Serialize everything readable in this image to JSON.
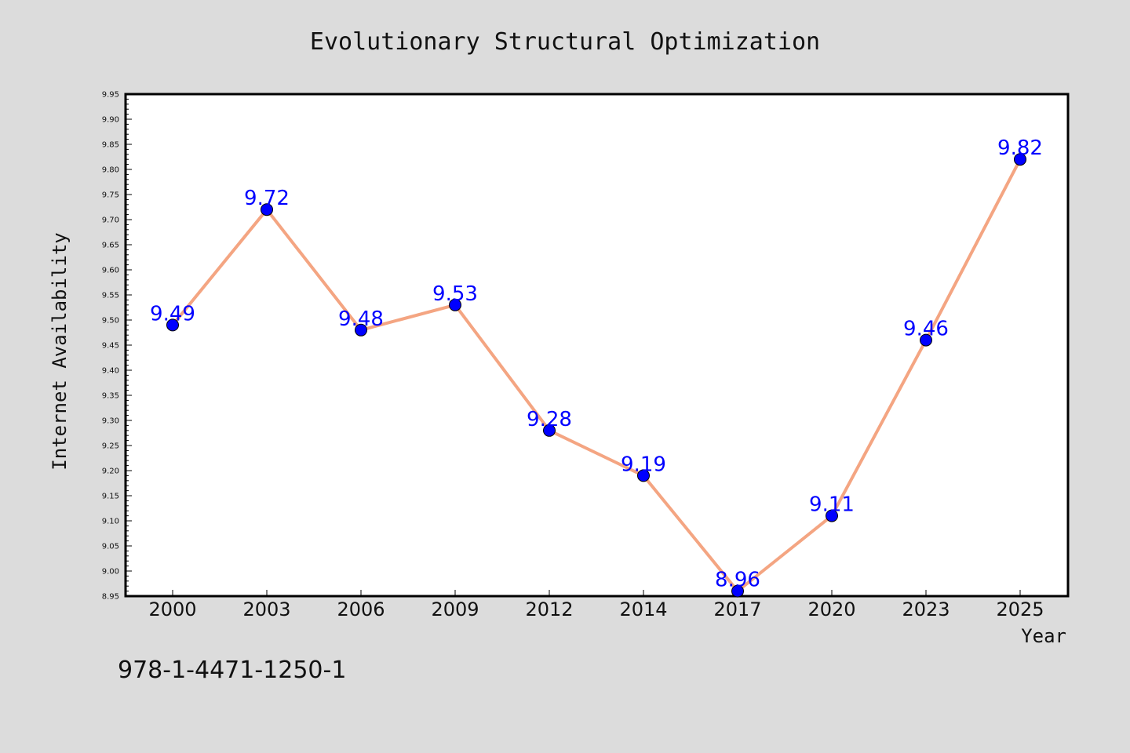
{
  "colors": {
    "background": "#dcdcdc",
    "plot_background": "#ffffff",
    "line": "#f4a582",
    "marker": "#0000ff",
    "data_label": "#0000ff"
  },
  "footer_text": "978-1-4471-1250-1",
  "chart_data": {
    "type": "line",
    "title": "Evolutionary Structural Optimization",
    "xlabel": "Year",
    "ylabel": "Internet Availability",
    "categories": [
      "2000",
      "2003",
      "2006",
      "2009",
      "2012",
      "2014",
      "2017",
      "2020",
      "2023",
      "2025"
    ],
    "series": [
      {
        "values": [
          9.49,
          9.72,
          9.48,
          9.53,
          9.28,
          9.19,
          8.96,
          9.11,
          9.46,
          9.82
        ],
        "labels": [
          "9.49",
          "9.72",
          "9.48",
          "9.53",
          "9.28",
          "9.19",
          "8.96",
          "9.11",
          "9.46",
          "9.82"
        ]
      }
    ],
    "ylim": [
      8.95,
      9.95
    ],
    "yticks": [
      "8.95",
      "9.00",
      "9.05",
      "9.10",
      "9.15",
      "9.20",
      "9.25",
      "9.30",
      "9.35",
      "9.40",
      "9.45",
      "9.50",
      "9.55",
      "9.60",
      "9.65",
      "9.70",
      "9.75",
      "9.80",
      "9.85",
      "9.90",
      "9.95"
    ],
    "grid": false,
    "legend": "none"
  }
}
